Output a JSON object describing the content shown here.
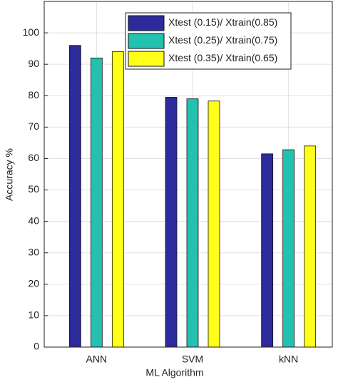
{
  "chart_data": {
    "type": "bar",
    "x_label": "ML Algorithm",
    "y_label": "Accuracy %",
    "categories": [
      "ANN",
      "SVM",
      "kNN"
    ],
    "series": [
      {
        "name": "Xtest (0.15)/ Xtrain(0.85)",
        "color": "#2d2a9b",
        "values": [
          96,
          79.5,
          61.5
        ]
      },
      {
        "name": "Xtest (0.25)/ Xtrain(0.75)",
        "color": "#22c1b0",
        "values": [
          92,
          79,
          62.8
        ]
      },
      {
        "name": "Xtest (0.35)/ Xtrain(0.65)",
        "color": "#ffff1a",
        "values": [
          94,
          78.3,
          64
        ]
      }
    ],
    "ylim": [
      0,
      110
    ],
    "yticks": [
      0,
      10,
      20,
      30,
      40,
      50,
      60,
      70,
      80,
      90,
      100
    ],
    "grid": true,
    "legend": "top-right"
  }
}
